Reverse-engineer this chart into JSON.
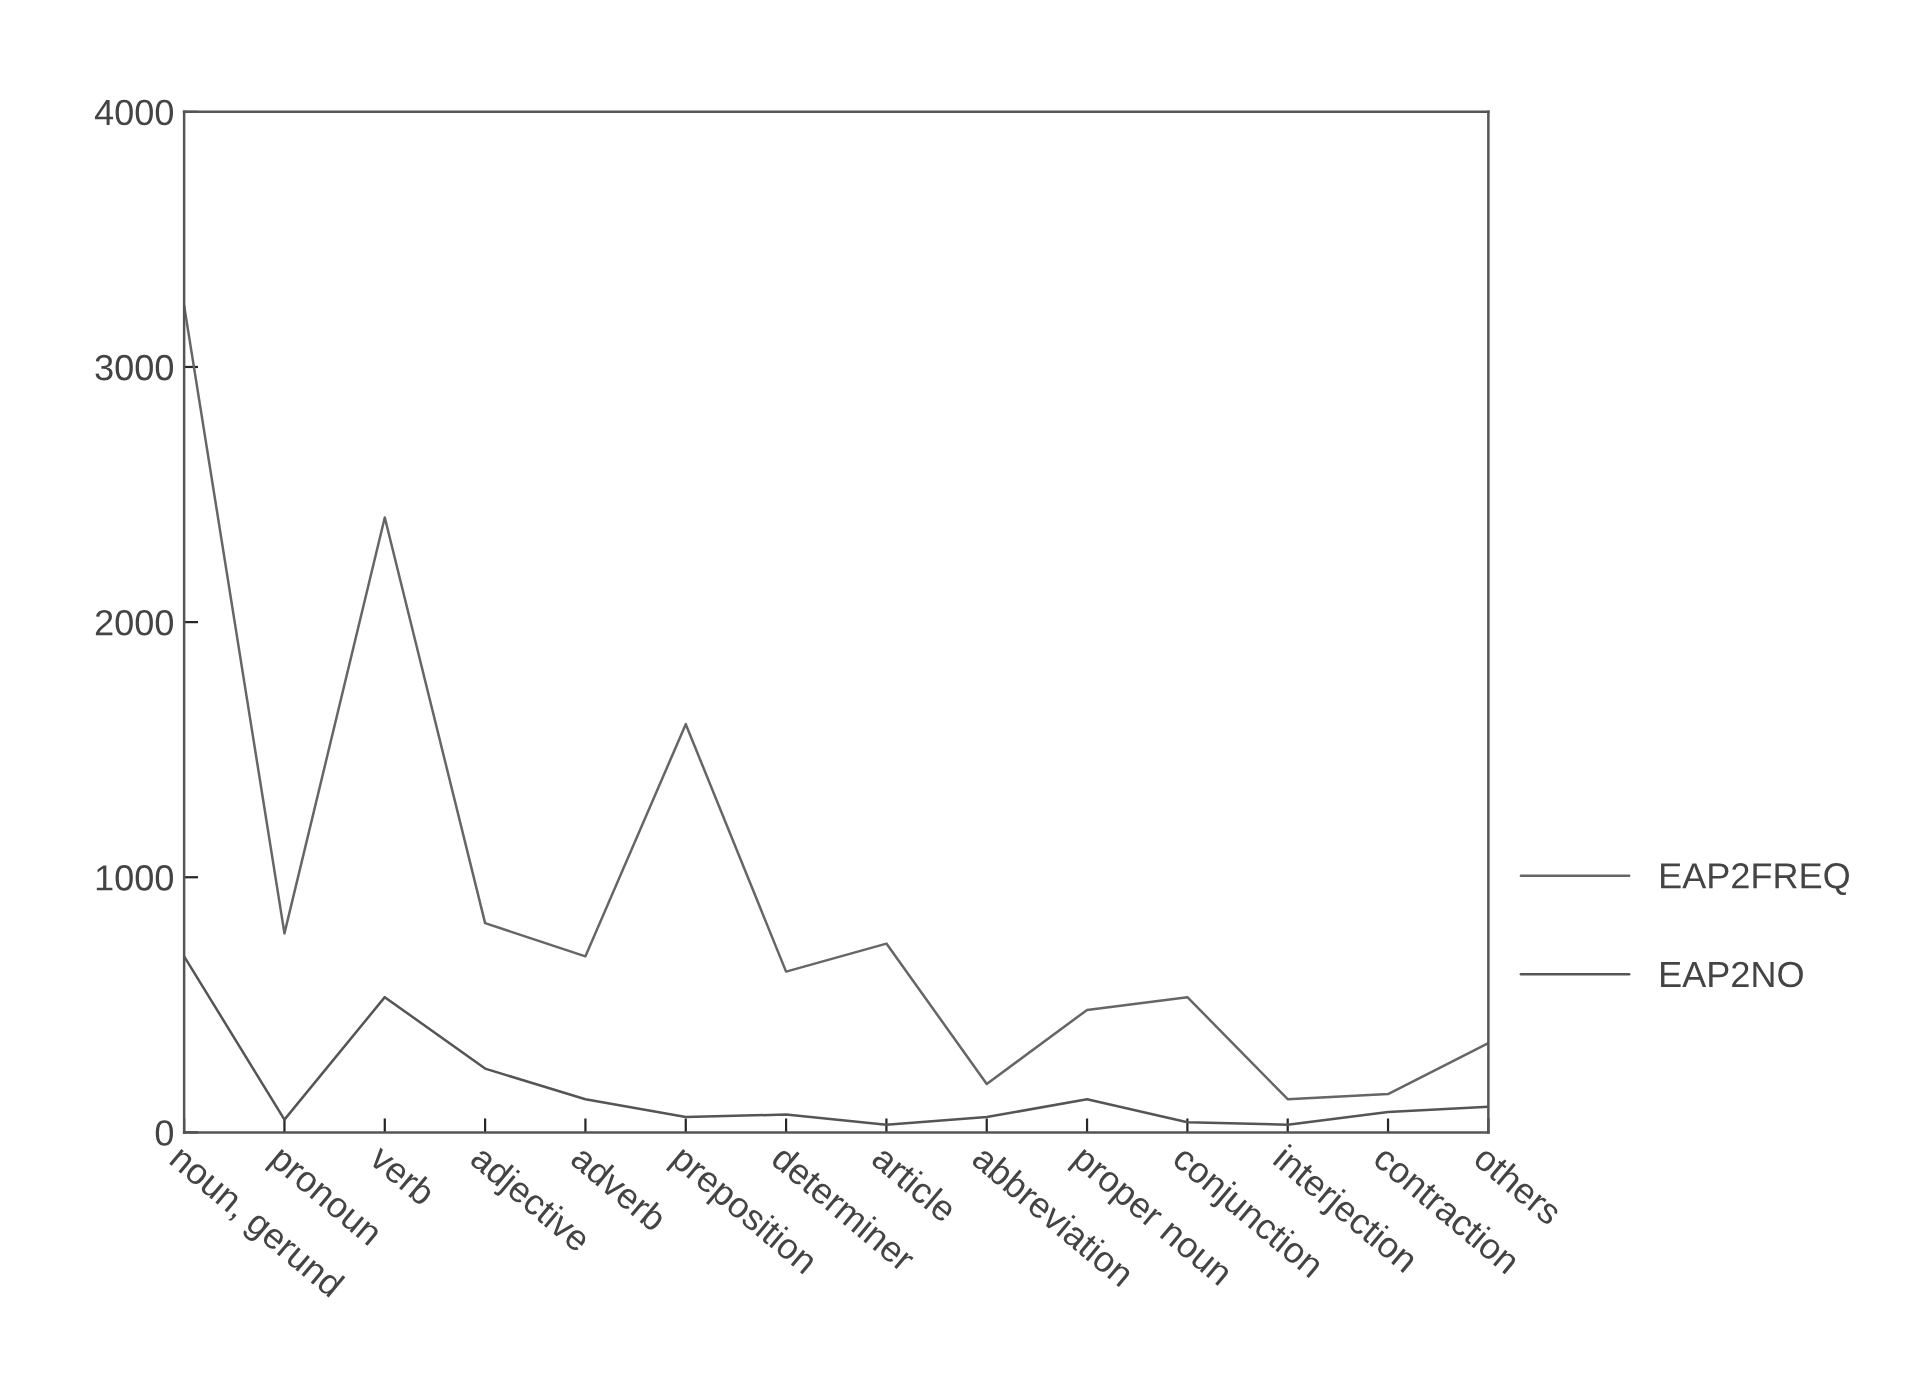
{
  "chart_data": {
    "type": "line",
    "categories": [
      "noun, gerund",
      "pronoun",
      "verb",
      "adjective",
      "adverb",
      "preposition",
      "determiner",
      "article",
      "abbreviation",
      "proper noun",
      "conjunction",
      "interjection",
      "contraction",
      "others"
    ],
    "series": [
      {
        "name": "EAP2FREQ",
        "color": "#666666",
        "values": [
          3240,
          780,
          2410,
          820,
          690,
          1600,
          630,
          740,
          190,
          480,
          530,
          130,
          150,
          350
        ]
      },
      {
        "name": "EAP2NO",
        "color": "#555555",
        "values": [
          690,
          50,
          530,
          250,
          130,
          60,
          70,
          30,
          60,
          130,
          40,
          30,
          80,
          100
        ]
      }
    ],
    "ylim": [
      0,
      4000
    ],
    "yticks": [
      0,
      1000,
      2000,
      3000,
      4000
    ],
    "grid": false,
    "legend": "right",
    "marker": "none",
    "line_style": "solid"
  }
}
